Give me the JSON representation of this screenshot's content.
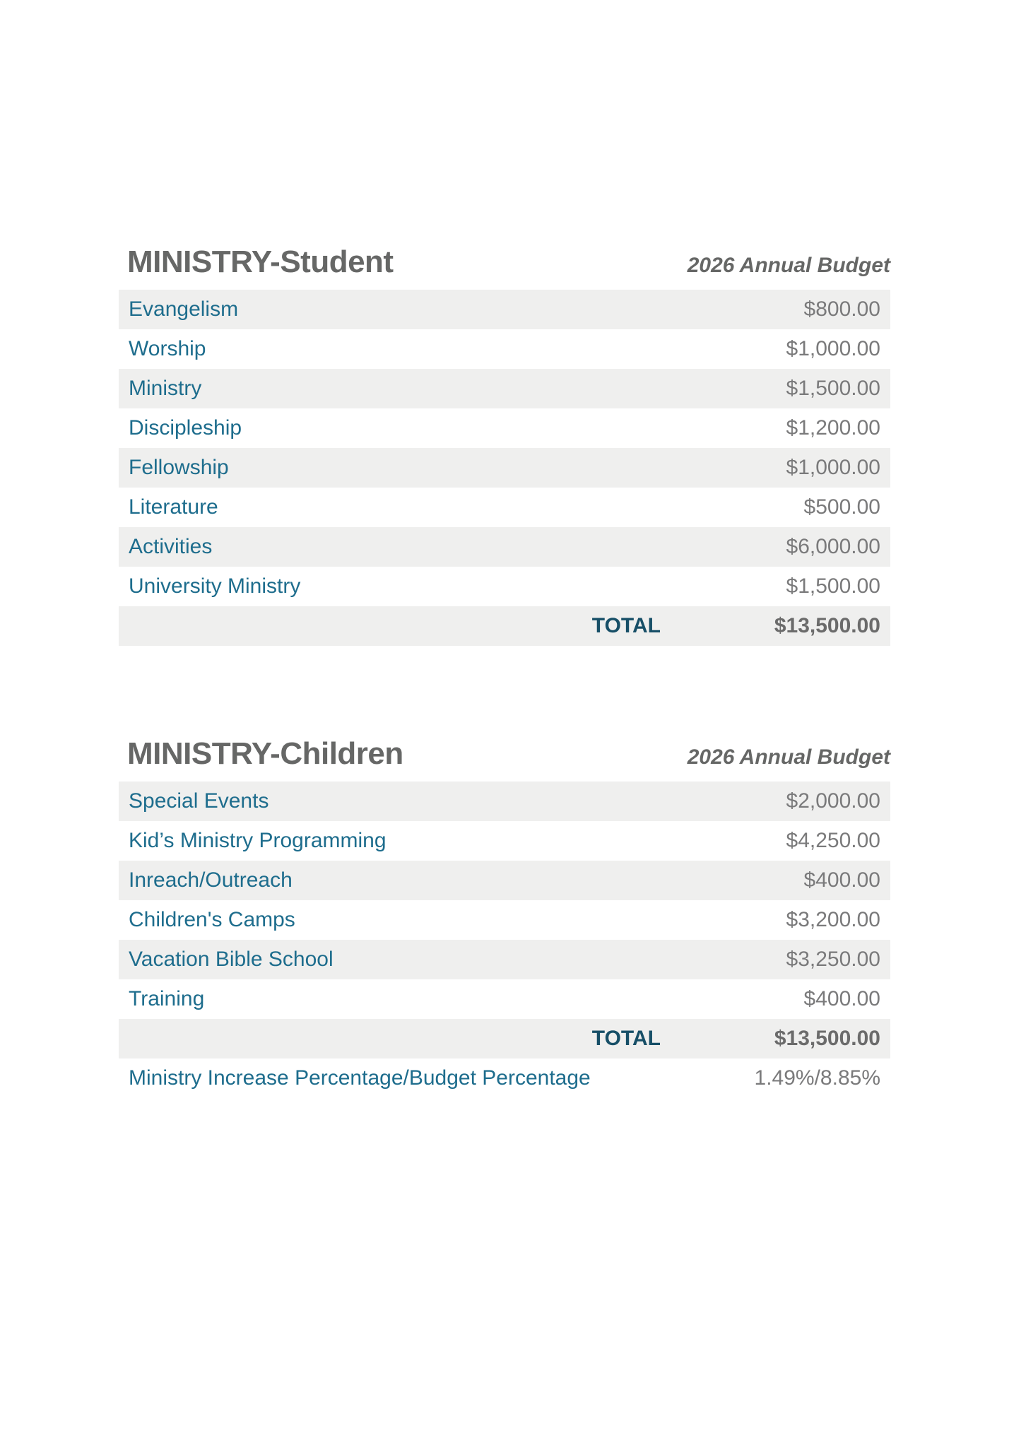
{
  "colors": {
    "heading_gray": "#666766",
    "label_teal": "#1e6d8d",
    "total_teal": "#174f67",
    "amount_gray": "#7a7a7b",
    "total_amount_gray": "#6b6b6b",
    "row_stripe": "#efefee",
    "page_background": "#ffffff"
  },
  "tables": [
    {
      "title": "MINISTRY-Student",
      "budget_column_header": "2026 Annual Budget",
      "rows": [
        {
          "label": "Evangelism",
          "amount": "$800.00"
        },
        {
          "label": "Worship",
          "amount": "$1,000.00"
        },
        {
          "label": "Ministry",
          "amount": "$1,500.00"
        },
        {
          "label": "Discipleship",
          "amount": "$1,200.00"
        },
        {
          "label": "Fellowship",
          "amount": "$1,000.00"
        },
        {
          "label": "Literature",
          "amount": "$500.00"
        },
        {
          "label": "Activities",
          "amount": "$6,000.00"
        },
        {
          "label": "University Ministry",
          "amount": "$1,500.00"
        }
      ],
      "total_label": "TOTAL",
      "total_amount": "$13,500.00"
    },
    {
      "title": "MINISTRY-Children",
      "budget_column_header": "2026 Annual Budget",
      "rows": [
        {
          "label": "Special Events",
          "amount": "$2,000.00"
        },
        {
          "label": "Kid’s Ministry Programming",
          "amount": "$4,250.00"
        },
        {
          "label": "Inreach/Outreach",
          "amount": "$400.00"
        },
        {
          "label": "Children's Camps",
          "amount": "$3,200.00"
        },
        {
          "label": "Vacation Bible School",
          "amount": "$3,250.00"
        },
        {
          "label": "Training",
          "amount": "$400.00"
        }
      ],
      "total_label": "TOTAL",
      "total_amount": "$13,500.00",
      "footer_row": {
        "label": "Ministry Increase Percentage/Budget Percentage",
        "value": "1.49%/8.85%"
      }
    }
  ]
}
